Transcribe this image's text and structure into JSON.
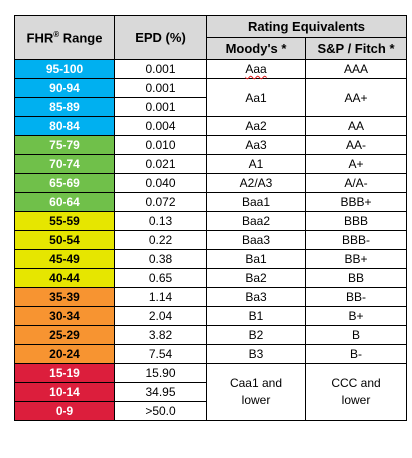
{
  "header": {
    "range_label": "FHR",
    "range_sup": "®",
    "range_suffix": " Range",
    "epd_label": "EPD (%)",
    "rating_equivalents": "Rating Equivalents",
    "moodys": "Moody's *",
    "sp_fitch": "S&P / Fitch *"
  },
  "colors": {
    "blue": "#00b0f0",
    "green": "#70c04a",
    "yellow": "#e6e600",
    "orange": "#f79431",
    "red": "#dc1e3c",
    "header_bg": "#d9d9d9"
  },
  "rows": [
    {
      "range": "95-100",
      "epd": "0.001",
      "moodys": "Aaa",
      "sp": "AAA",
      "color": "blue"
    },
    {
      "range": "90-94",
      "epd": "0.001",
      "color": "blue"
    },
    {
      "range": "85-89",
      "epd": "0.001",
      "color": "blue"
    },
    {
      "range": "80-84",
      "epd": "0.004",
      "moodys": "Aa2",
      "sp": "AA",
      "color": "blue"
    },
    {
      "range": "75-79",
      "epd": "0.010",
      "moodys": "Aa3",
      "sp": "AA-",
      "color": "green"
    },
    {
      "range": "70-74",
      "epd": "0.021",
      "moodys": "A1",
      "sp": "A+",
      "color": "green"
    },
    {
      "range": "65-69",
      "epd": "0.040",
      "moodys": "A2/A3",
      "sp": "A/A-",
      "color": "green"
    },
    {
      "range": "60-64",
      "epd": "0.072",
      "moodys": "Baa1",
      "sp": "BBB+",
      "color": "green"
    },
    {
      "range": "55-59",
      "epd": "0.13",
      "moodys": "Baa2",
      "sp": "BBB",
      "color": "yellow"
    },
    {
      "range": "50-54",
      "epd": "0.22",
      "moodys": "Baa3",
      "sp": "BBB-",
      "color": "yellow"
    },
    {
      "range": "45-49",
      "epd": "0.38",
      "moodys": "Ba1",
      "sp": "BB+",
      "color": "yellow"
    },
    {
      "range": "40-44",
      "epd": "0.65",
      "moodys": "Ba2",
      "sp": "BB",
      "color": "yellow"
    },
    {
      "range": "35-39",
      "epd": "1.14",
      "moodys": "Ba3",
      "sp": "BB-",
      "color": "orange"
    },
    {
      "range": "30-34",
      "epd": "2.04",
      "moodys": "B1",
      "sp": "B+",
      "color": "orange"
    },
    {
      "range": "25-29",
      "epd": "3.82",
      "moodys": "B2",
      "sp": "B",
      "color": "orange"
    },
    {
      "range": "20-24",
      "epd": "7.54",
      "moodys": "B3",
      "sp": "B-",
      "color": "orange"
    },
    {
      "range": "15-19",
      "epd": "15.90",
      "color": "red"
    },
    {
      "range": "10-14",
      "epd": "34.95",
      "color": "red"
    },
    {
      "range": "0-9",
      "epd": ">50.0",
      "color": "red"
    }
  ],
  "merged": {
    "aa1_moodys": "Aa1",
    "aa1_sp": "AA+",
    "caa_moodys_1": "Caa1 and",
    "caa_moodys_2": "lower",
    "caa_sp_1": "CCC and",
    "caa_sp_2": "lower"
  }
}
